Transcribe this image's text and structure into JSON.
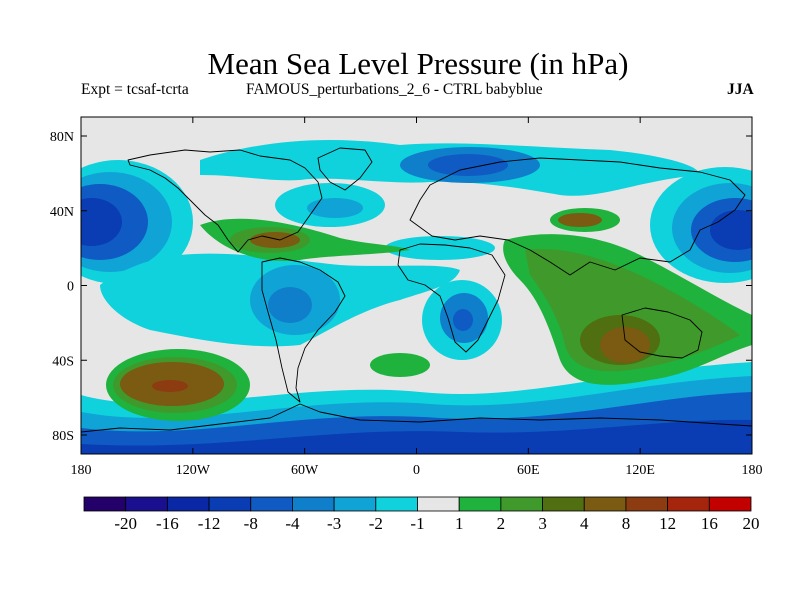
{
  "title": "Mean Sea Level Pressure (in hPa)",
  "experiment": "Expt = tcsaf-tcrta",
  "description": "FAMOUS_perturbations_2_6 - CTRL babyblue",
  "season": "JJA",
  "x_ticks": [
    "180",
    "120W",
    "60W",
    "0",
    "60E",
    "120E",
    "180"
  ],
  "y_ticks": [
    "80N",
    "40N",
    "0",
    "40S",
    "80S"
  ],
  "colorbar": {
    "labels": [
      "-20",
      "-16",
      "-12",
      "-8",
      "-4",
      "-3",
      "-2",
      "-1",
      "1",
      "2",
      "3",
      "4",
      "8",
      "12",
      "16",
      "20"
    ],
    "colors": [
      "#24006b",
      "#1a0f8f",
      "#0a27a6",
      "#0a3cb4",
      "#0f5ac3",
      "#0f7fcc",
      "#10a3d6",
      "#10d2dc",
      "#e6e6e6",
      "#1fb23d",
      "#3f9a2b",
      "#506f10",
      "#7b5a12",
      "#8c3c10",
      "#a4240c",
      "#c30000"
    ]
  },
  "colors": {
    "neutral": "#e6e6e6",
    "coast": "#000000"
  }
}
